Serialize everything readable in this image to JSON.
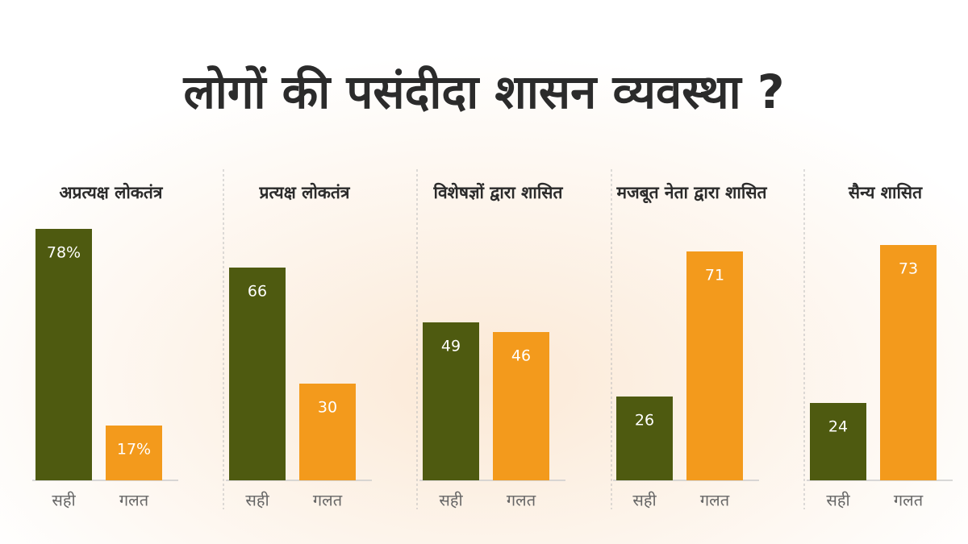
{
  "title": "लोगों की पसंदीदा शासन व्यवस्था ?",
  "chart_data": [
    {
      "type": "bar",
      "title": "अप्रत्यक्ष लोकतंत्र",
      "categories": [
        "सही",
        "गलत"
      ],
      "values": [
        78,
        17
      ],
      "value_labels": [
        "78%",
        "17%"
      ],
      "colors": [
        "#4e5a10",
        "#f39a1c"
      ]
    },
    {
      "type": "bar",
      "title": "प्रत्यक्ष लोकतंत्र",
      "categories": [
        "सही",
        "गलत"
      ],
      "values": [
        66,
        30
      ],
      "colors": [
        "#4e5a10",
        "#f39a1c"
      ]
    },
    {
      "type": "bar",
      "title": "विशेषज्ञों द्वारा शासित",
      "categories": [
        "सही",
        "गलत"
      ],
      "values": [
        49,
        46
      ],
      "colors": [
        "#4e5a10",
        "#f39a1c"
      ]
    },
    {
      "type": "bar",
      "title": "मजबूत नेता द्वारा शासित",
      "categories": [
        "सही",
        "गलत"
      ],
      "values": [
        26,
        71
      ],
      "colors": [
        "#4e5a10",
        "#f39a1c"
      ]
    },
    {
      "type": "bar",
      "title": "सैन्य शासित",
      "categories": [
        "सही",
        "गलत"
      ],
      "values": [
        24,
        73
      ],
      "colors": [
        "#4e5a10",
        "#f39a1c"
      ]
    }
  ]
}
